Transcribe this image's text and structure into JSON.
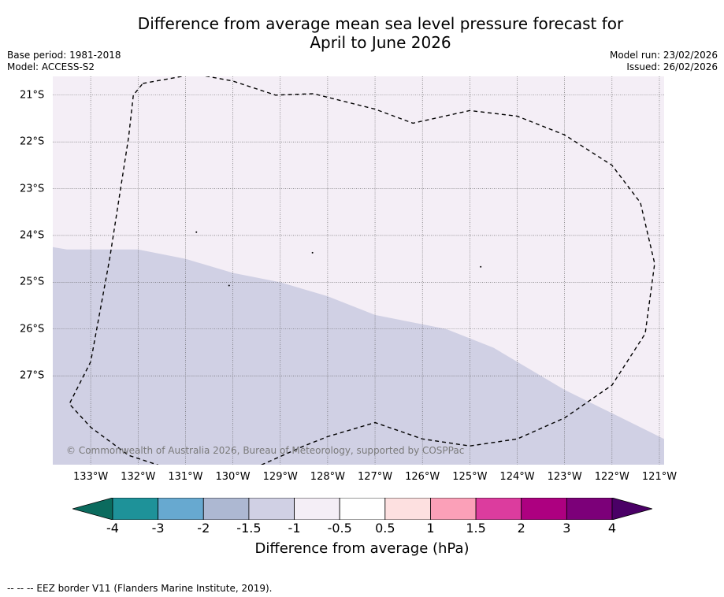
{
  "header": {
    "title_line1": "Difference from average mean sea level pressure forecast for",
    "title_line2": "April to June 2026",
    "base_period": "Base period: 1981-2018",
    "model": "Model: ACCESS-S2",
    "model_run": "Model run: 23/02/2026",
    "issued": "Issued: 26/02/2026"
  },
  "map": {
    "lon_range": [
      -133.8,
      -120.9
    ],
    "lat_range": [
      -28.9,
      -20.6
    ],
    "lon_ticks": [
      {
        "value": -133,
        "label": "133°W"
      },
      {
        "value": -132,
        "label": "132°W"
      },
      {
        "value": -131,
        "label": "131°W"
      },
      {
        "value": -130,
        "label": "130°W"
      },
      {
        "value": -129,
        "label": "129°W"
      },
      {
        "value": -128,
        "label": "128°W"
      },
      {
        "value": -127,
        "label": "127°W"
      },
      {
        "value": -126,
        "label": "126°W"
      },
      {
        "value": -125,
        "label": "125°W"
      },
      {
        "value": -124,
        "label": "124°W"
      },
      {
        "value": -123,
        "label": "123°W"
      },
      {
        "value": -122,
        "label": "122°W"
      },
      {
        "value": -121,
        "label": "121°W"
      }
    ],
    "lat_ticks": [
      {
        "value": -21,
        "label": "21°S"
      },
      {
        "value": -22,
        "label": "22°S"
      },
      {
        "value": -23,
        "label": "23°S"
      },
      {
        "value": -24,
        "label": "24°S"
      },
      {
        "value": -25,
        "label": "25°S"
      },
      {
        "value": -26,
        "label": "26°S"
      },
      {
        "value": -27,
        "label": "27°S"
      }
    ],
    "regions": [
      {
        "name": "-1 to -0.5 hPa",
        "color": "#f4eef6"
      },
      {
        "name": "-1.5 to -1 hPa",
        "color": "#d0d0e4"
      }
    ],
    "boundary_between_regions_lonlat": [
      [
        -133.8,
        -24.25
      ],
      [
        -133.5,
        -24.3
      ],
      [
        -132.0,
        -24.3
      ],
      [
        -131.0,
        -24.5
      ],
      [
        -130.0,
        -24.8
      ],
      [
        -129.0,
        -25.0
      ],
      [
        -128.0,
        -25.3
      ],
      [
        -127.0,
        -25.7
      ],
      [
        -126.0,
        -25.9
      ],
      [
        -125.5,
        -26.0
      ],
      [
        -124.5,
        -26.4
      ],
      [
        -124.0,
        -26.7
      ],
      [
        -123.0,
        -27.3
      ],
      [
        -122.0,
        -27.8
      ],
      [
        -121.0,
        -28.3
      ],
      [
        -120.9,
        -28.35
      ]
    ],
    "eez_border_lonlat": [
      [
        -131.9,
        -20.75
      ],
      [
        -130.8,
        -20.55
      ],
      [
        -130.0,
        -20.7
      ],
      [
        -129.1,
        -21.0
      ],
      [
        -128.3,
        -20.97
      ],
      [
        -127.0,
        -21.3
      ],
      [
        -126.2,
        -21.6
      ],
      [
        -125.0,
        -21.33
      ],
      [
        -124.0,
        -21.45
      ],
      [
        -123.0,
        -21.85
      ],
      [
        -122.0,
        -22.5
      ],
      [
        -121.4,
        -23.3
      ],
      [
        -121.1,
        -24.6
      ],
      [
        -121.3,
        -26.1
      ],
      [
        -122.0,
        -27.2
      ],
      [
        -123.0,
        -27.9
      ],
      [
        -124.0,
        -28.35
      ],
      [
        -125.0,
        -28.5
      ],
      [
        -126.0,
        -28.35
      ],
      [
        -127.0,
        -28.0
      ],
      [
        -128.0,
        -28.3
      ],
      [
        -128.5,
        -28.5
      ],
      [
        -129.5,
        -28.95
      ],
      [
        -130.3,
        -29.05
      ],
      [
        -131.3,
        -29.0
      ],
      [
        -132.2,
        -28.7
      ],
      [
        -133.0,
        -28.1
      ],
      [
        -133.45,
        -27.6
      ],
      [
        -133.0,
        -26.7
      ],
      [
        -132.6,
        -24.5
      ],
      [
        -132.2,
        -21.9
      ],
      [
        -132.1,
        -21.0
      ],
      [
        -131.9,
        -20.75
      ]
    ],
    "island_marks_lonlat": [
      [
        -130.77,
        -23.93
      ],
      [
        -128.32,
        -24.37
      ],
      [
        -124.77,
        -24.67
      ],
      [
        -130.08,
        -25.07
      ]
    ],
    "copyright": "© Commonwealth of Australia 2026, Bureau of Meteorology, supported by COSPPac"
  },
  "colorbar": {
    "colors": [
      "#0b6b5e",
      "#1e9299",
      "#67a9d0",
      "#adb8d2",
      "#d0d0e4",
      "#f4eef6",
      "#ffffff",
      "#fde0e0",
      "#fba0b8",
      "#dc3c9e",
      "#ad0080",
      "#7c0079",
      "#4a0066"
    ],
    "tick_labels": [
      "-4",
      "-3",
      "-2",
      "-1.5",
      "-1",
      "-0.5",
      "0.5",
      "1",
      "1.5",
      "2",
      "3",
      "4"
    ],
    "label": "Difference from average (hPa)"
  },
  "footnote": "--  --  -- EEZ border V11 (Flanders Marine Institute, 2019)."
}
